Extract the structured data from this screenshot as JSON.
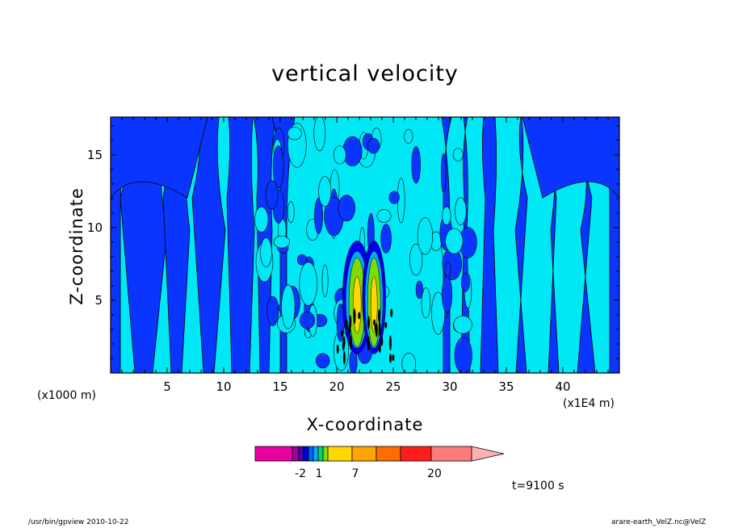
{
  "chart_data": {
    "type": "heatmap",
    "title": "vertical velocity",
    "xlabel": "X-coordinate",
    "ylabel": "Z-coordinate",
    "x_unit_left": "(x1000 m)",
    "x_unit_right": "(x1E4 m)",
    "xlim": [
      0,
      45
    ],
    "ylim": [
      0,
      17.6
    ],
    "x_ticks": [
      "5",
      "10",
      "15",
      "20",
      "25",
      "30",
      "35",
      "40"
    ],
    "x_tick_values": [
      5,
      10,
      15,
      20,
      25,
      30,
      35,
      40
    ],
    "y_ticks": [
      "5",
      "10",
      "15"
    ],
    "y_tick_values": [
      5,
      10,
      15
    ],
    "colorbar": {
      "labels": [
        "-2",
        "1",
        "7",
        "20"
      ],
      "colors": [
        "#e6009e",
        "#a0009e",
        "#4800a8",
        "#0000e6",
        "#0066ff",
        "#00aaff",
        "#00d66a",
        "#7ddc00",
        "#ffd800",
        "#ffa400",
        "#ff6c00",
        "#ff1e1e",
        "#ff7a7a",
        "#ffb0b0"
      ]
    },
    "palette": {
      "dominant_negative": "#0a35ff",
      "dominant_positive": "#00e8f5"
    }
  },
  "time_label": "t=9100 s",
  "footer": {
    "left": "/usr/bin/gpview   2010-10-22",
    "right": "arare-earth_VelZ.nc@VelZ"
  }
}
